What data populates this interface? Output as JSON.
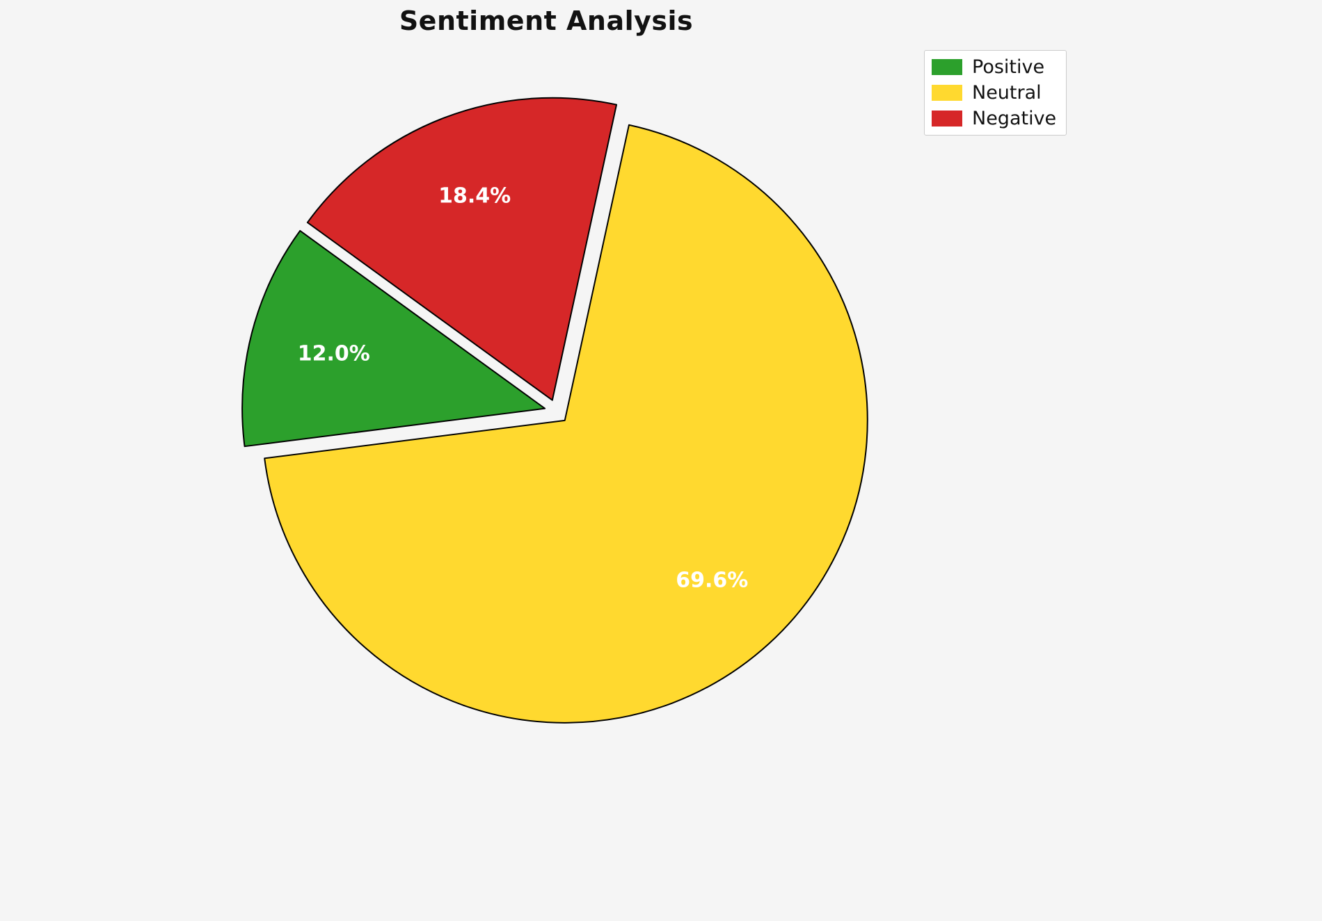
{
  "chart_data": {
    "type": "pie",
    "title": "Sentiment Analysis",
    "categories": [
      "Positive",
      "Neutral",
      "Negative"
    ],
    "values": [
      12.0,
      69.6,
      18.4
    ],
    "slice_labels": [
      "12.0%",
      "69.6%",
      "18.4%"
    ],
    "colors": [
      "#2ca02c",
      "#FFD92F",
      "#d62728"
    ],
    "legend": {
      "position": "upper right",
      "entries": [
        "Positive",
        "Neutral",
        "Negative"
      ]
    },
    "layout": {
      "startangle": 144,
      "counterclock": true,
      "explode": [
        0.04,
        0.04,
        0.04
      ],
      "label_radius": 0.72,
      "edge_color": "#000000",
      "edge_width": 2,
      "background": "#f5f5f5",
      "label_color": "#ffffff",
      "label_fontsize": 30
    }
  }
}
